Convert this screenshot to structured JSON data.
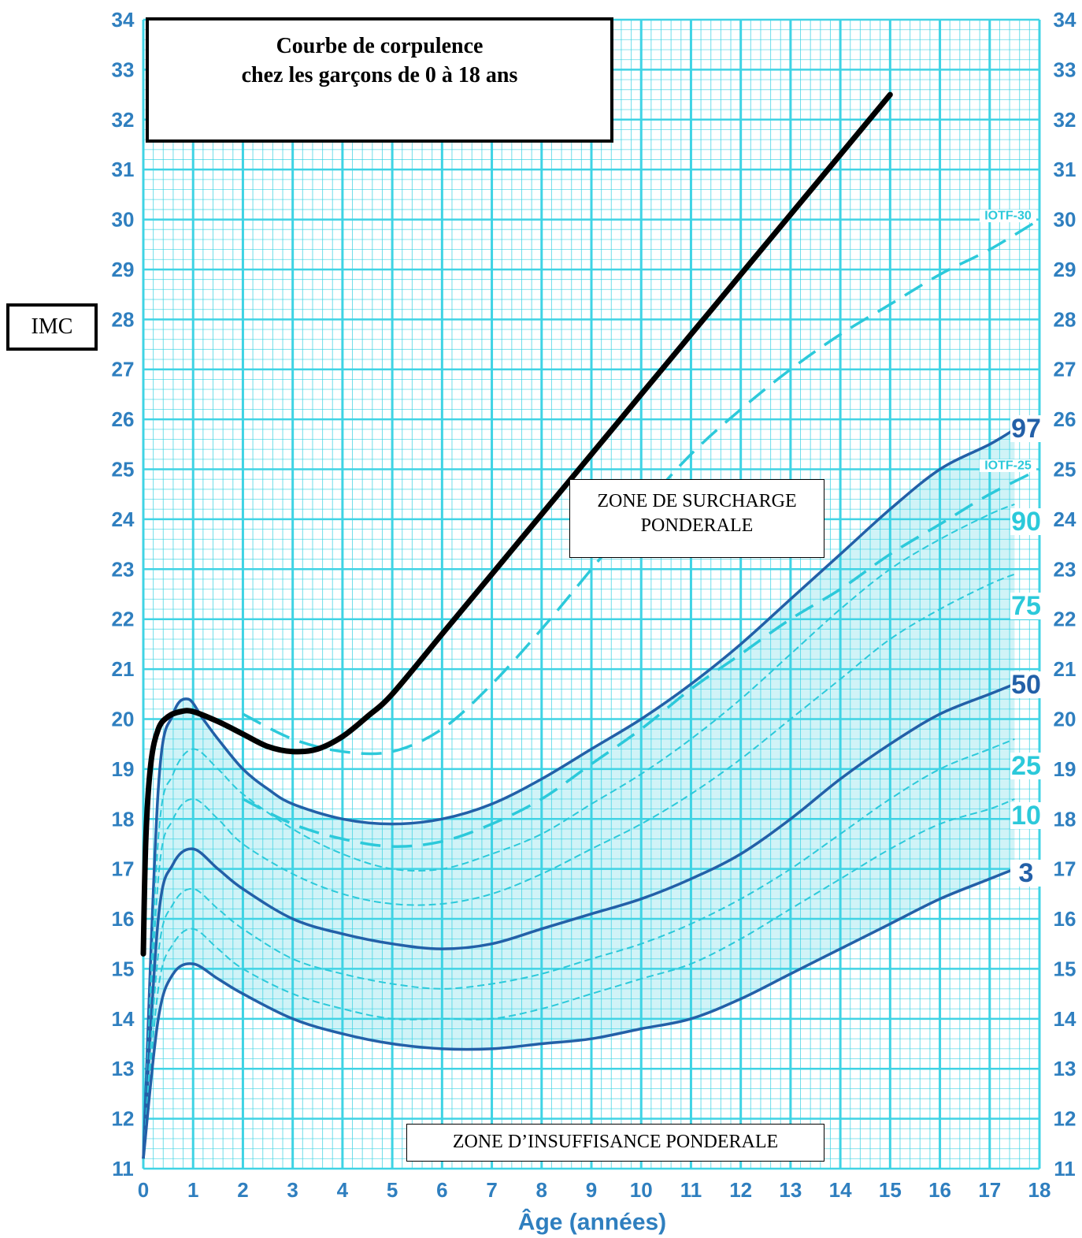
{
  "chart_data": {
    "type": "line",
    "title": "Courbe de corpulence\nchez les garçons de 0 à 18 ans",
    "title_lines": [
      "Courbe de corpulence",
      "chez les garçons de 0 à 18 ans"
    ],
    "xlabel": "Âge (années)",
    "ylabel": "IMC",
    "xlim": [
      0,
      18
    ],
    "ylim": [
      11,
      34
    ],
    "xticks": [
      "0",
      "1",
      "2",
      "3",
      "4",
      "5",
      "6",
      "7",
      "8",
      "9",
      "10",
      "11",
      "12",
      "13",
      "14",
      "15",
      "16",
      "17",
      "18"
    ],
    "yticks": [
      "11",
      "12",
      "13",
      "14",
      "15",
      "16",
      "17",
      "18",
      "19",
      "20",
      "21",
      "22",
      "23",
      "24",
      "25",
      "26",
      "27",
      "28",
      "29",
      "30",
      "31",
      "32",
      "33",
      "34"
    ],
    "grid": true,
    "band_fill": {
      "lower": "3",
      "upper": "97"
    },
    "colors": {
      "background": "#ffffff",
      "grid": "#3fd3e4",
      "axis_text": "#2f7fbf",
      "major_curve": "#2360a8",
      "minor_curve": "#2cc9da",
      "band": "#c8f1f6",
      "patient_curve": "#000000"
    },
    "annotations": [
      "ZONE DE SURCHARGE\nPONDERALE",
      "ZONE D’INSUFFISANCE PONDERALE"
    ],
    "annotation_lines": {
      "surcharge": [
        "ZONE DE SURCHARGE",
        "PONDERALE"
      ],
      "insuffisance": "ZONE D’INSUFFISANCE PONDERALE"
    },
    "series": [
      {
        "name": "97",
        "style": "major",
        "x": [
          0,
          0.3,
          0.6,
          0.9,
          1.2,
          1.5,
          2,
          2.5,
          3,
          4,
          5,
          6,
          7,
          8,
          9,
          10,
          11,
          12,
          13,
          14,
          15,
          16,
          17,
          17.5
        ],
        "y": [
          11.2,
          18.6,
          20.1,
          20.4,
          20.0,
          19.6,
          19.0,
          18.6,
          18.3,
          18.0,
          17.9,
          18.0,
          18.3,
          18.8,
          19.4,
          20.0,
          20.7,
          21.5,
          22.4,
          23.3,
          24.2,
          25.0,
          25.5,
          25.8
        ]
      },
      {
        "name": "90",
        "style": "minor",
        "x": [
          0,
          0.3,
          0.6,
          1,
          1.5,
          2,
          3,
          4,
          5,
          6,
          7,
          8,
          9,
          10,
          11,
          12,
          13,
          14,
          15,
          16,
          17,
          17.5
        ],
        "y": [
          11.2,
          17.6,
          18.9,
          19.4,
          19.0,
          18.5,
          17.8,
          17.3,
          17.0,
          17.0,
          17.3,
          17.7,
          18.3,
          18.9,
          19.6,
          20.4,
          21.3,
          22.2,
          23.0,
          23.6,
          24.1,
          24.3
        ]
      },
      {
        "name": "75",
        "style": "minor",
        "x": [
          0,
          0.3,
          0.6,
          1,
          1.5,
          2,
          3,
          4,
          5,
          6,
          7,
          8,
          9,
          10,
          11,
          12,
          13,
          14,
          15,
          16,
          17,
          17.5
        ],
        "y": [
          11.2,
          16.8,
          18.0,
          18.4,
          18.0,
          17.5,
          16.9,
          16.5,
          16.3,
          16.3,
          16.5,
          16.9,
          17.4,
          17.9,
          18.5,
          19.2,
          20.0,
          20.8,
          21.6,
          22.2,
          22.7,
          22.9
        ]
      },
      {
        "name": "50",
        "style": "major",
        "x": [
          0,
          0.3,
          0.6,
          1,
          1.5,
          2,
          3,
          4,
          5,
          6,
          7,
          8,
          9,
          10,
          11,
          12,
          13,
          14,
          15,
          16,
          17,
          17.5
        ],
        "y": [
          11.2,
          16.0,
          17.1,
          17.4,
          17.0,
          16.6,
          16.0,
          15.7,
          15.5,
          15.4,
          15.5,
          15.8,
          16.1,
          16.4,
          16.8,
          17.3,
          18.0,
          18.8,
          19.5,
          20.1,
          20.5,
          20.7
        ]
      },
      {
        "name": "25",
        "style": "minor",
        "x": [
          0,
          0.3,
          0.6,
          1,
          1.5,
          2,
          3,
          4,
          5,
          6,
          7,
          8,
          9,
          10,
          11,
          12,
          13,
          14,
          15,
          16,
          17,
          17.5
        ],
        "y": [
          11.2,
          15.3,
          16.3,
          16.6,
          16.2,
          15.8,
          15.2,
          14.9,
          14.7,
          14.6,
          14.7,
          14.9,
          15.2,
          15.5,
          15.9,
          16.4,
          17.0,
          17.7,
          18.4,
          19.0,
          19.4,
          19.6
        ]
      },
      {
        "name": "10",
        "style": "minor",
        "x": [
          0,
          0.3,
          0.6,
          1,
          1.5,
          2,
          3,
          4,
          5,
          6,
          7,
          8,
          9,
          10,
          11,
          12,
          13,
          14,
          15,
          16,
          17,
          17.5
        ],
        "y": [
          11.2,
          14.6,
          15.5,
          15.8,
          15.4,
          15.0,
          14.5,
          14.2,
          14.0,
          14.0,
          14.0,
          14.2,
          14.5,
          14.8,
          15.1,
          15.6,
          16.2,
          16.8,
          17.4,
          17.9,
          18.2,
          18.4
        ]
      },
      {
        "name": "3",
        "style": "major",
        "x": [
          0,
          0.3,
          0.6,
          1,
          1.5,
          2,
          3,
          4,
          5,
          6,
          7,
          8,
          9,
          10,
          11,
          12,
          13,
          14,
          15,
          16,
          17,
          17.5
        ],
        "y": [
          11.2,
          14.0,
          14.9,
          15.1,
          14.8,
          14.5,
          14.0,
          13.7,
          13.5,
          13.4,
          13.4,
          13.5,
          13.6,
          13.8,
          14.0,
          14.4,
          14.9,
          15.4,
          15.9,
          16.4,
          16.8,
          17.0
        ]
      },
      {
        "name": "IOTF-30",
        "style": "iotf",
        "x": [
          2,
          3,
          4,
          5,
          6,
          7,
          8,
          9,
          10,
          11,
          12,
          13,
          14,
          15,
          16,
          17,
          18
        ],
        "y": [
          20.1,
          19.6,
          19.35,
          19.35,
          19.8,
          20.7,
          21.8,
          23.0,
          24.2,
          25.3,
          26.2,
          27.0,
          27.7,
          28.3,
          28.9,
          29.4,
          30.0
        ]
      },
      {
        "name": "IOTF-25",
        "style": "iotf",
        "x": [
          2,
          3,
          4,
          5,
          6,
          7,
          8,
          9,
          10,
          11,
          12,
          13,
          14,
          15,
          16,
          17,
          18
        ],
        "y": [
          18.4,
          17.9,
          17.6,
          17.45,
          17.55,
          17.9,
          18.4,
          19.1,
          19.8,
          20.6,
          21.3,
          22.0,
          22.6,
          23.3,
          23.9,
          24.5,
          25.0
        ]
      },
      {
        "style": "patient",
        "x": [
          0.0,
          0.05,
          0.15,
          0.3,
          0.5,
          0.75,
          1.0,
          1.5,
          2.0,
          2.5,
          3.0,
          3.5,
          4.0,
          4.5,
          5.0,
          6.0,
          7.0,
          8.0,
          9.0,
          10.0,
          11.0,
          12.0,
          13.0,
          14.0,
          15.0
        ],
        "y": [
          15.3,
          17.6,
          19.1,
          19.8,
          20.05,
          20.15,
          20.15,
          19.95,
          19.7,
          19.45,
          19.35,
          19.4,
          19.65,
          20.05,
          20.5,
          21.7,
          22.9,
          24.1,
          25.3,
          26.5,
          27.7,
          28.9,
          30.1,
          31.3,
          32.5
        ]
      }
    ],
    "curve_labels": [
      "97",
      "90",
      "75",
      "50",
      "25",
      "10",
      "3",
      "IOTF-30",
      "IOTF-25"
    ]
  }
}
